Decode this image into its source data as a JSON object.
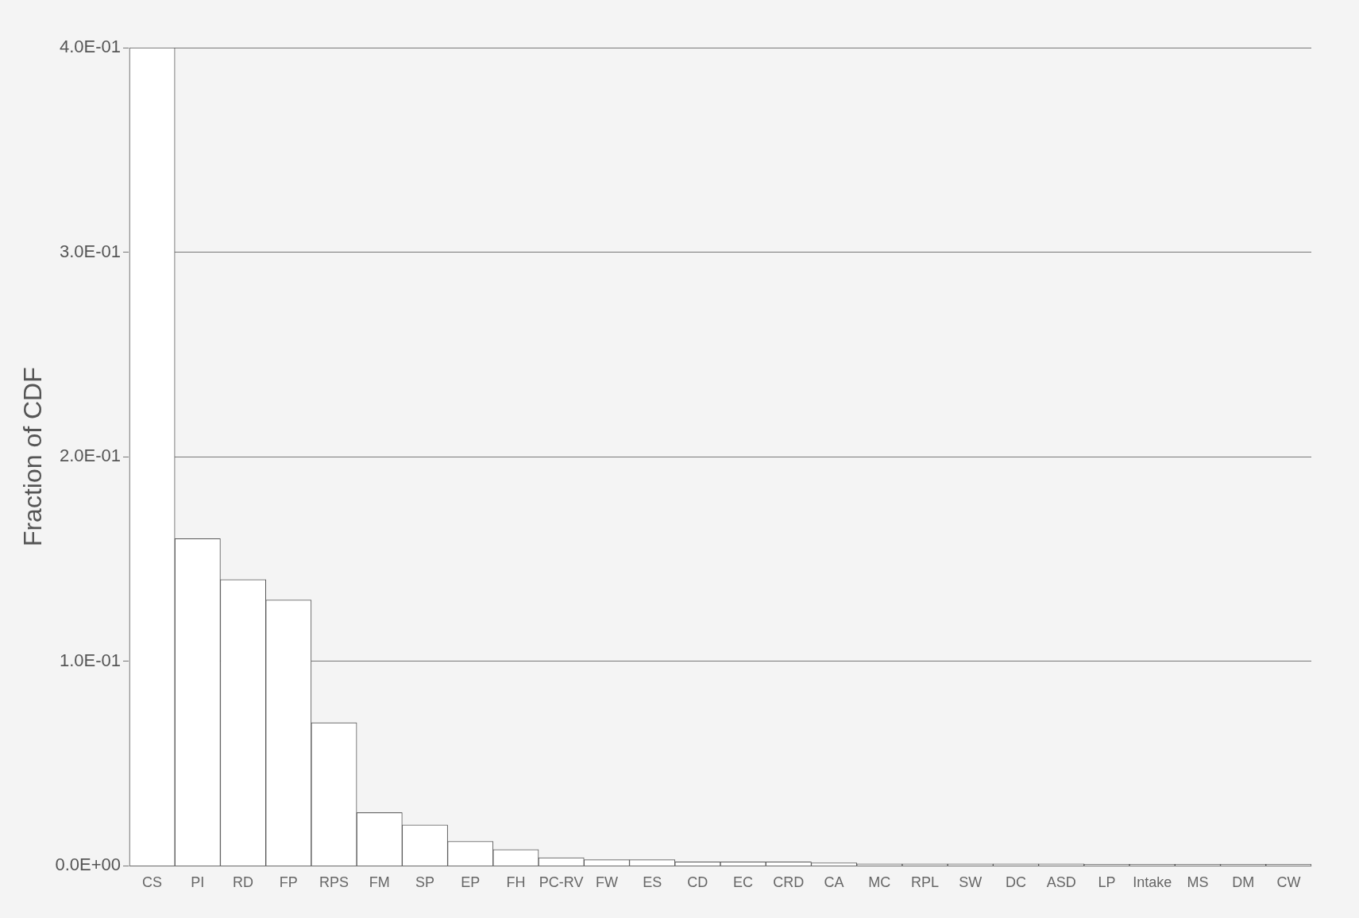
{
  "chart_data": {
    "type": "bar",
    "ylabel": "Fraction of CDF",
    "categories": [
      "CS",
      "PI",
      "RD",
      "FP",
      "RPS",
      "FM",
      "SP",
      "EP",
      "FH",
      "PC-RV",
      "FW",
      "ES",
      "CD",
      "EC",
      "CRD",
      "CA",
      "MC",
      "RPL",
      "SW",
      "DC",
      "ASD",
      "LP",
      "Intake",
      "MS",
      "DM",
      "CW"
    ],
    "values": [
      0.4,
      0.16,
      0.14,
      0.13,
      0.07,
      0.026,
      0.02,
      0.012,
      0.008,
      0.004,
      0.003,
      0.003,
      0.002,
      0.002,
      0.002,
      0.0015,
      0.001,
      0.001,
      0.001,
      0.001,
      0.001,
      0.0008,
      0.0008,
      0.0008,
      0.0008,
      0.0008
    ],
    "color": "#ffffff",
    "ylim": [
      0,
      0.4
    ],
    "yticks": [
      {
        "value": 0,
        "label": "0.0E+00"
      },
      {
        "value": 0.1,
        "label": "1.0E-01"
      },
      {
        "value": 0.2,
        "label": "2.0E-01"
      },
      {
        "value": 0.3,
        "label": "3.0E-01"
      },
      {
        "value": 0.4,
        "label": "4.0E-01"
      }
    ],
    "grid": "y",
    "legend": false
  }
}
